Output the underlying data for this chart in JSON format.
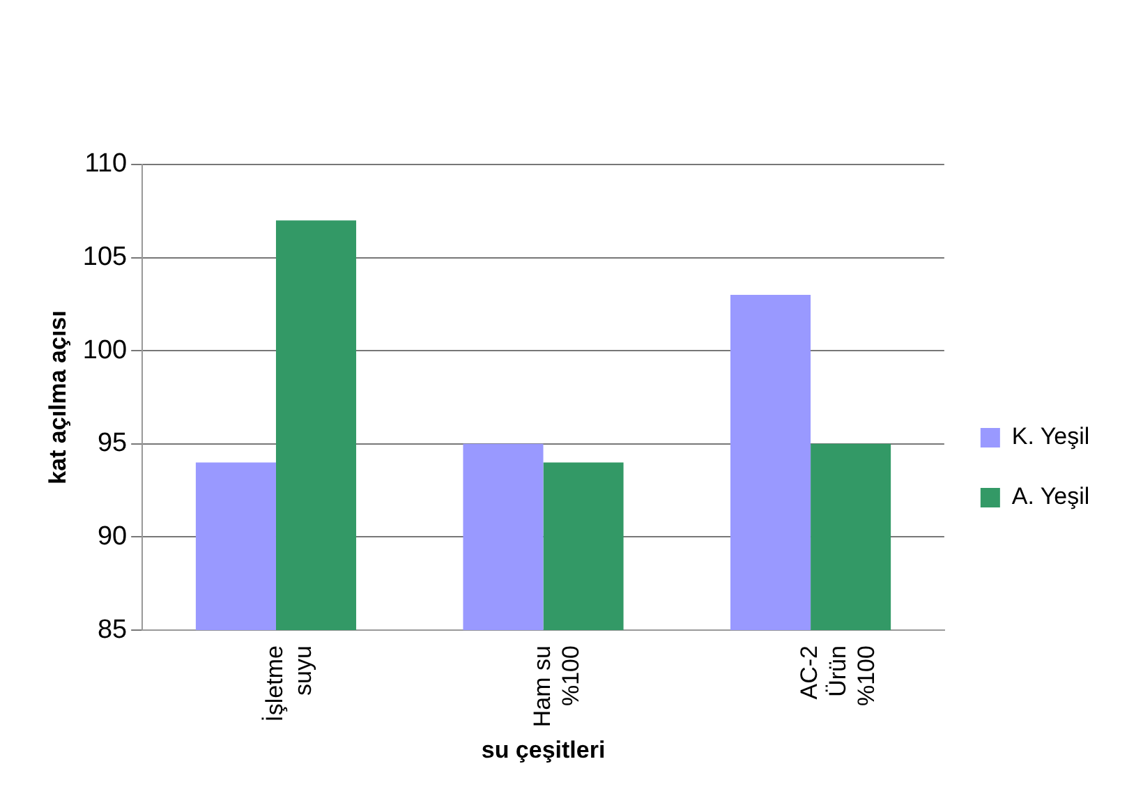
{
  "chart_data": {
    "type": "bar",
    "xlabel": "su çeşitleri",
    "ylabel": "kat açılma açısı",
    "categories": [
      "İşletme suyu",
      "Ham su %100",
      "AC-2 Ürün %100"
    ],
    "series": [
      {
        "name": "K. Yeşil",
        "color": "#9999ff",
        "values": [
          94,
          95,
          103
        ]
      },
      {
        "name": "A. Yeşil",
        "color": "#339966",
        "values": [
          107,
          94,
          95
        ]
      }
    ],
    "ylim": [
      85,
      110
    ],
    "yticks": [
      85,
      90,
      95,
      100,
      105,
      110
    ],
    "grid": "y",
    "legend": "right"
  }
}
